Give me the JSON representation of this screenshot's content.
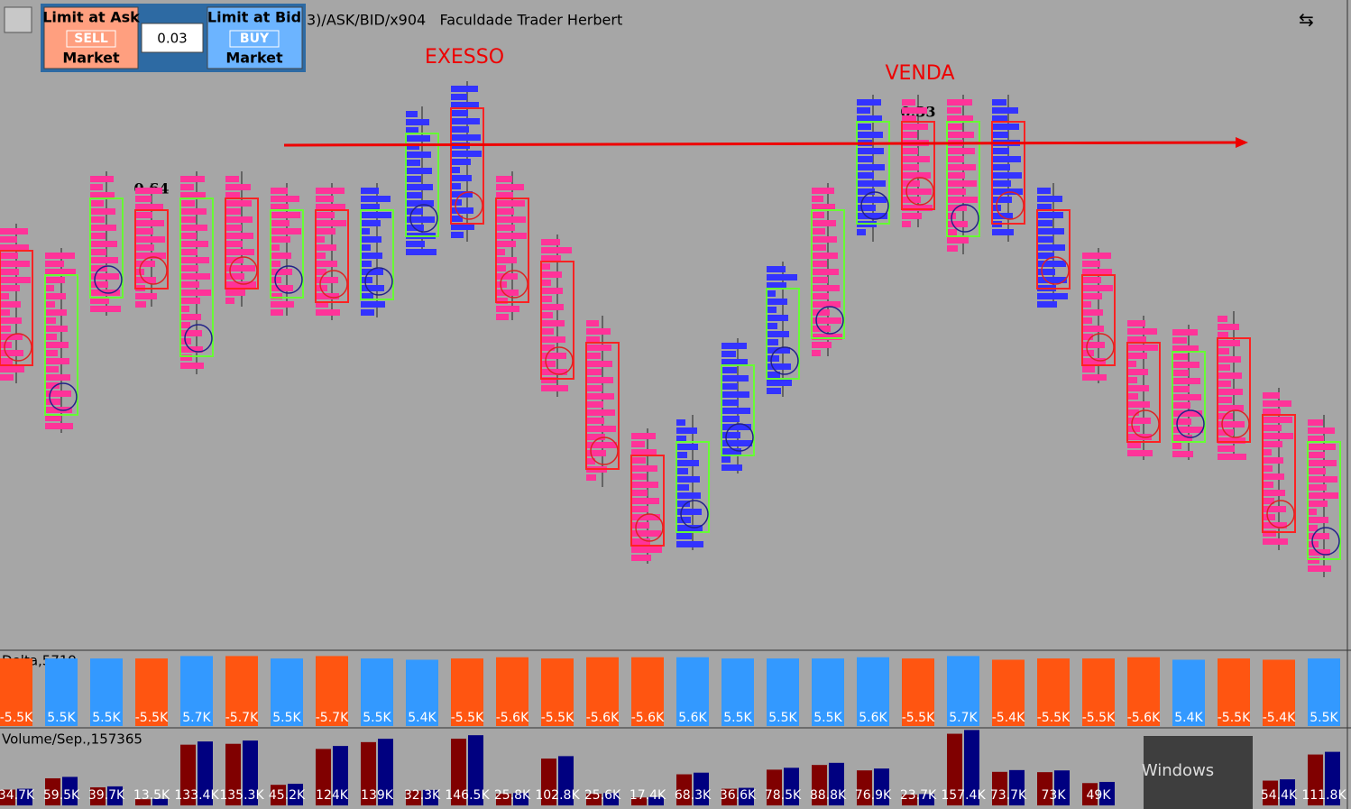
{
  "header": {
    "sell_top": "Limit at Ask",
    "sell_mid": "SELL",
    "sell_bottom": "Market",
    "qty": "0.03",
    "buy_top": "Limit at Bid",
    "buy_mid": "BUY",
    "buy_bottom": "Market",
    "title": "3)/ASK/BID/x904   Faculdade Trader Herbert"
  },
  "annotations": {
    "excess": "EXESSO",
    "sell": "VENDA",
    "left_value": "0.64",
    "right_value": "0.33"
  },
  "overlay": {
    "text": "Windows"
  },
  "delta": {
    "label": "Delta,5719",
    "values": [
      -5500,
      5500,
      5500,
      -5500,
      5700,
      -5700,
      5500,
      -5700,
      5500,
      5400,
      -5500,
      -5600,
      -5500,
      -5600,
      -5600,
      5600,
      5500,
      5500,
      5500,
      5600,
      -5500,
      5700,
      -5400,
      -5500,
      -5500,
      -5600,
      5400,
      -5500,
      -5400,
      5500
    ],
    "value_labels": [
      "-5.5K",
      "5.5K",
      "5.5K",
      "-5.5K",
      "5.7K",
      "-5.7K",
      "5.5K",
      "-5.7K",
      "5.5K",
      "5.4K",
      "-5.5K",
      "-5.6K",
      "-5.5K",
      "-5.6K",
      "-5.6K",
      "5.6K",
      "5.5K",
      "5.5K",
      "5.5K",
      "5.6K",
      "-5.5K",
      "5.7K",
      "-5.4K",
      "-5.5K",
      "-5.5K",
      "-5.6K",
      "5.4K",
      "-5.5K",
      "-5.4K",
      "5.5K"
    ],
    "up_color": "#3399ff",
    "down_color": "#ff5511"
  },
  "volume": {
    "label": "Volume/Sep.,157365",
    "values": [
      34700,
      59500,
      39700,
      13500,
      133400,
      135300,
      45200,
      124000,
      139000,
      32300,
      146500,
      25800,
      102800,
      25600,
      17400,
      68300,
      36600,
      78500,
      88800,
      76900,
      23700,
      157400,
      73700,
      73000,
      49000,
      null,
      null,
      null,
      54400,
      111800
    ],
    "value_labels": [
      "34.7K",
      "59.5K",
      "39.7K",
      "13.5K",
      "133.4K",
      "135.3K",
      "45.2K",
      "124K",
      "139K",
      "32.3K",
      "146.5K",
      "25.8K",
      "102.8K",
      "25.6K",
      "17.4K",
      "68.3K",
      "36.6K",
      "78.5K",
      "88.8K",
      "76.9K",
      "23.7K",
      "157.4K",
      "73.7K",
      "73K",
      "49K",
      null,
      null,
      null,
      "54.4K",
      "111.8K"
    ],
    "sell_color": "#800000",
    "buy_color": "#000080"
  }
}
